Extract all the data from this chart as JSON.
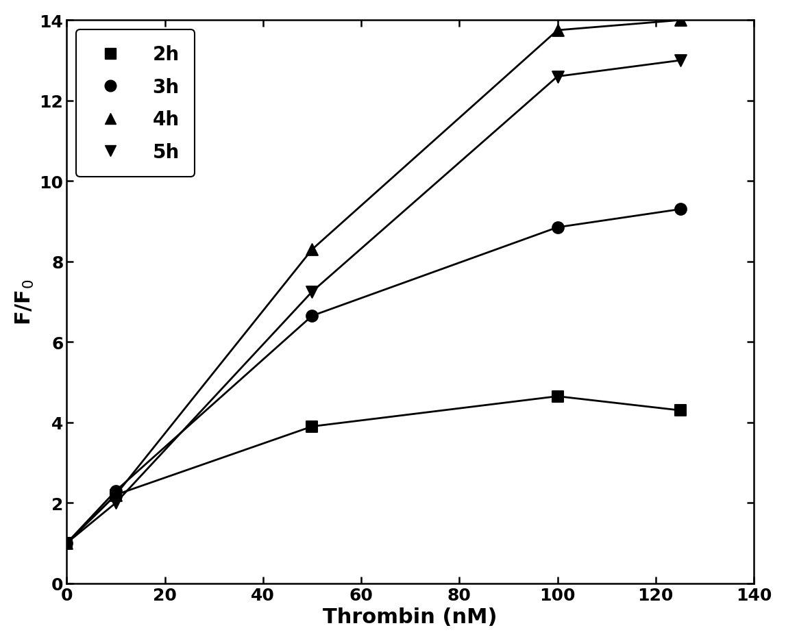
{
  "series": [
    {
      "label": "2h",
      "marker": "s",
      "x": [
        0,
        10,
        50,
        100,
        125
      ],
      "y": [
        1.0,
        2.2,
        3.9,
        4.65,
        4.3
      ]
    },
    {
      "label": "3h",
      "marker": "o",
      "x": [
        0,
        10,
        50,
        100,
        125
      ],
      "y": [
        1.0,
        2.3,
        6.65,
        8.85,
        9.3
      ]
    },
    {
      "label": "4h",
      "marker": "^",
      "x": [
        0,
        10,
        50,
        100,
        125
      ],
      "y": [
        1.0,
        2.2,
        8.3,
        13.75,
        14.0
      ]
    },
    {
      "label": "5h",
      "marker": "v",
      "x": [
        0,
        10,
        50,
        100,
        125
      ],
      "y": [
        1.0,
        2.0,
        7.25,
        12.6,
        13.0
      ]
    }
  ],
  "xlabel": "Thrombin (nM)",
  "ylabel": "F/F$_0$",
  "xlim": [
    0,
    140
  ],
  "ylim": [
    0,
    14
  ],
  "xticks": [
    0,
    20,
    40,
    60,
    80,
    100,
    120,
    140
  ],
  "yticks": [
    0,
    2,
    4,
    6,
    8,
    10,
    12,
    14
  ],
  "color": "#000000",
  "marker_size": 12,
  "line_width": 2.0,
  "legend_loc": "upper left",
  "font_size": 20,
  "tick_font_size": 18,
  "label_font_size": 22
}
